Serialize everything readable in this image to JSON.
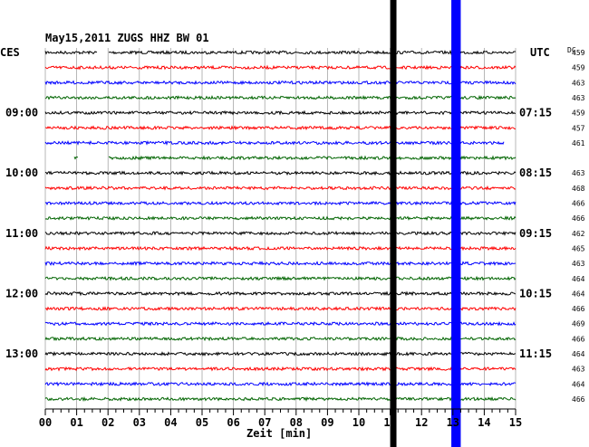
{
  "chart_data": {
    "type": "helicorder",
    "title": "May15,2011   ZUGS HHZ BW 01",
    "left_timezone": "CES",
    "right_timezone": "UTC",
    "dc_header": "DC",
    "xlabel": "Zeit [min]",
    "xlim": [
      0,
      15
    ],
    "x_ticks": [
      "00",
      "01",
      "02",
      "03",
      "04",
      "05",
      "06",
      "07",
      "08",
      "09",
      "10",
      "11",
      "12",
      "13",
      "14",
      "15"
    ],
    "minutes_per_line": 15,
    "trace_colors": [
      "#000000",
      "#ff0000",
      "#0000ff",
      "#006400"
    ],
    "left_hour_labels": [
      {
        "line": 4,
        "text": "09:00"
      },
      {
        "line": 8,
        "text": "10:00"
      },
      {
        "line": 12,
        "text": "11:00"
      },
      {
        "line": 16,
        "text": "12:00"
      },
      {
        "line": 20,
        "text": "13:00"
      }
    ],
    "right_time_labels": [
      {
        "line": 4,
        "text": "07:15"
      },
      {
        "line": 8,
        "text": "08:15"
      },
      {
        "line": 12,
        "text": "09:15"
      },
      {
        "line": 16,
        "text": "10:15"
      },
      {
        "line": 20,
        "text": "11:15"
      }
    ],
    "dc_values": [
      "459",
      "459",
      "463",
      "463",
      "459",
      "457",
      "461",
      "",
      "463",
      "468",
      "466",
      "466",
      "462",
      "465",
      "463",
      "464",
      "464",
      "466",
      "469",
      "466",
      "464",
      "463",
      "464",
      "466"
    ],
    "gaps": [
      {
        "line": 0,
        "start_min": 1.65,
        "end_min": 2.0
      },
      {
        "line": 6,
        "start_min": 14.65,
        "end_min": 15.0
      },
      {
        "line": 7,
        "start_min": 0.0,
        "end_min": 0.9
      },
      {
        "line": 7,
        "start_min": 1.05,
        "end_min": 2.0
      }
    ],
    "bands": [
      {
        "minute": 11.1,
        "color": "#000000",
        "width_min": 0.2
      },
      {
        "minute": 13.1,
        "color": "#0000ff",
        "width_min": 0.3
      }
    ]
  }
}
